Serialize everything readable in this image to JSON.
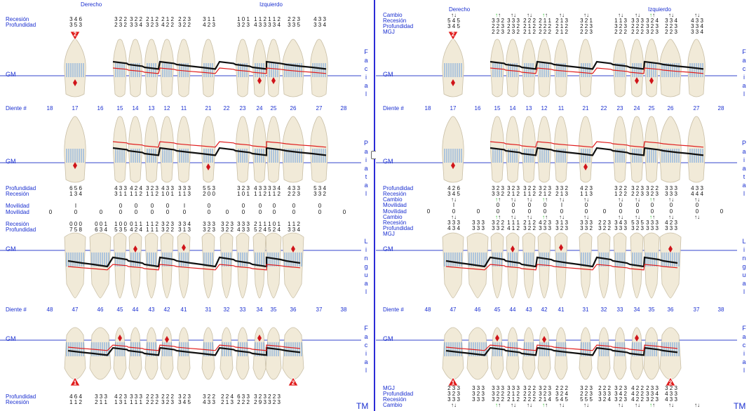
{
  "left": {
    "headers": {
      "right": "Derecho",
      "left": "Izquierdo"
    },
    "labels": {
      "recesion": "Recesión",
      "profundidad": "Profundidad",
      "movilidad": "Movilidad",
      "diente": "Diente #",
      "gm": "GM",
      "facial": "Facial",
      "palatal": "Paiatal",
      "lingual": "Lingual"
    },
    "upper_teeth": [
      "18",
      "17",
      "16",
      "15",
      "14",
      "13",
      "12",
      "11",
      "21",
      "22",
      "23",
      "24",
      "25",
      "26",
      "27",
      "28"
    ],
    "lower_teeth": [
      "48",
      "47",
      "46",
      "45",
      "44",
      "43",
      "42",
      "41",
      "31",
      "32",
      "33",
      "34",
      "35",
      "36",
      "37",
      "38"
    ],
    "upper_facial_recesion": [
      "",
      "3 4 6",
      "",
      "3 2 2",
      "3 2 2",
      "2 1 2",
      "2 1 2",
      "2 2 3",
      "3 1 1",
      "",
      "1 0 1",
      "1 1 2",
      "1 1 2",
      "2 2 3",
      "4 3 3",
      ""
    ],
    "upper_facial_profundidad": [
      "",
      "3 5 3",
      "",
      "2 3 2",
      "3 3 4",
      "3 2 3",
      "4 2 2",
      "3 2 2",
      "4 2 3",
      "",
      "3 2 3",
      "4 3 3",
      "3 3 4",
      "3 3 5",
      "3 3 4",
      ""
    ],
    "upper_palatal_profundidad": [
      "",
      "6 5 6",
      "",
      "4 3 3",
      "4 2 4",
      "3 2 3",
      "4 3 3",
      "3 3 3",
      "5 5 3",
      "",
      "3 2 3",
      "4 3 3",
      "3 3 4",
      "4 3 3",
      "5 3 4",
      ""
    ],
    "upper_palatal_recesion": [
      "",
      "1 3 4",
      "",
      "3 1 1",
      "1 1 2",
      "1 1 2",
      "1 0 1",
      "1 1 3",
      "2 0 0",
      "",
      "1 0 1",
      "1 1 2",
      "1 1 2",
      "2 2 3",
      "3 3 2",
      ""
    ],
    "upper_movilidad": [
      "",
      "I",
      "",
      "0",
      "0",
      "0",
      "0",
      "I",
      "0",
      "",
      "0",
      "0",
      "0",
      "0",
      "0",
      ""
    ],
    "lower_movilidad": [
      "0",
      "0",
      "0",
      "0",
      "0",
      "0",
      "0",
      "0",
      "0",
      "0",
      "0",
      "0",
      "0",
      "0",
      "0",
      "0"
    ],
    "lower_lingual_recesion": [
      "",
      "0 0 0",
      "0 0 1",
      "1 0 0",
      "0 1 1",
      "1 1 2",
      "3 2 3",
      "3 3 4",
      "3 3 3",
      "3 2 3",
      "3 3 3",
      "2 1 1",
      "1 0 1",
      "1 1 2",
      "",
      ""
    ],
    "lower_lingual_profundidad": [
      "",
      "7 5 8",
      "6 3 4",
      "5 3 5",
      "4 2 4",
      "1 1 1",
      "3 2 2",
      "3 1 3",
      "3 2 3",
      "3 2 2",
      "4 3 3",
      "5 2 4",
      "5 2 4",
      "3 3 4",
      "",
      ""
    ],
    "lower_facial_profundidad": [
      "",
      "4 6 4",
      "3 3 3",
      "4 2 3",
      "3 3 3",
      "2 2 3",
      "2 2 2",
      "3 2 3",
      "3 2 2",
      "2 2 4",
      "6 3 3",
      "3 2 3",
      "2 2 3",
      "",
      "",
      ""
    ],
    "lower_facial_recesion": [
      "",
      "1 1 2",
      "2 1 1",
      "1 3 1",
      "1 1 1",
      "2 2 2",
      "3 2 3",
      "3 4 5",
      "4 3 3",
      "2 1 3",
      "2 2 2",
      "2 9 3",
      "3 2 3",
      "",
      "",
      ""
    ],
    "badge_17": "2",
    "badge_47": "1",
    "badge_36": "2",
    "tm": "TM"
  },
  "right": {
    "headers": {
      "right": "Derecho",
      "left": "Izquierdo"
    },
    "labels": {
      "cambio": "Cambio",
      "recesion": "Recesión",
      "profundidad": "Profundidad",
      "mgj": "MGJ",
      "movilidad": "Movilidad",
      "diente": "Diente #",
      "gm": "GM",
      "facial": "Facial",
      "palatal": "Paiatal",
      "lingual": "Lingual"
    },
    "upper_teeth": [
      "18",
      "17",
      "16",
      "15",
      "14",
      "13",
      "12",
      "11",
      "21",
      "22",
      "23",
      "24",
      "25",
      "26",
      "27",
      "28"
    ],
    "lower_teeth": [
      "48",
      "47",
      "46",
      "45",
      "44",
      "43",
      "42",
      "41",
      "31",
      "32",
      "33",
      "34",
      "35",
      "36",
      "37",
      "38"
    ],
    "upper_facial_recesion": [
      "",
      "5 4 5",
      "",
      "3 3 2",
      "3 3 3",
      "2 2 2",
      "2 1 1",
      "2 1 3",
      "3 2 1",
      "",
      "1 1 3",
      "3 3 3",
      "3 2 4",
      "3 3 4",
      "4 3 3",
      ""
    ],
    "upper_facial_profundidad": [
      "",
      "3 4 5",
      "",
      "2 2 3",
      "2 3 2",
      "2 1 2",
      "2 2 2",
      "2 1 2",
      "2 2 3",
      "",
      "3 2 3",
      "2 2 2",
      "3 2 3",
      "2 2 3",
      "3 3 4",
      ""
    ],
    "upper_facial_mgj": [
      "",
      "",
      "",
      "2 2 3",
      "2 3 2",
      "2 1 2",
      "2 2 2",
      "2 1 2",
      "2 2 3",
      "",
      "2 2 2",
      "2 2 2",
      "3 2 3",
      "2 2 3",
      "3 3 4",
      ""
    ],
    "upper_palatal_profundidad": [
      "",
      "4 2 6",
      "",
      "3 2 3",
      "3 2 3",
      "3 2 2",
      "3 2 3",
      "3 3 2",
      "4 2 3",
      "",
      "3 2 2",
      "3 2 3",
      "3 2 2",
      "3 3 3",
      "4 3 3",
      ""
    ],
    "upper_palatal_recesion": [
      "",
      "3 4 5",
      "",
      "3 3 2",
      "2 1 2",
      "1 1 2",
      "2 1 2",
      "2 1 3",
      "1 1 3",
      "",
      "1 2 2",
      "2 2 3",
      "3 2 3",
      "3 3 3",
      "4 4 4",
      ""
    ],
    "upper_movilidad": [
      "",
      "I",
      "",
      "0",
      "0",
      "0",
      "0",
      "I",
      "0",
      "",
      "0",
      "0",
      "0",
      "0",
      "0",
      ""
    ],
    "lower_movilidad": [
      "0",
      "0",
      "0",
      "0",
      "0",
      "0",
      "0",
      "0",
      "0",
      "0",
      "0",
      "0",
      "0",
      "0",
      "0",
      "0"
    ],
    "lower_lingual_recesion": [
      "",
      "3 3 3",
      "3 3 3",
      "3 2 2",
      "1 1 1",
      "2 1 2",
      "4 2 3",
      "3 1 3",
      "3 3 3",
      "2 2 3",
      "3 4 3",
      "5 3 5",
      "3 3 3",
      "4 2 3",
      "",
      ""
    ],
    "lower_lingual_profundidad": [
      "",
      "4 3 4",
      "3 3 3",
      "3 3 2",
      "4 1 2",
      "3 2 2",
      "3 3 3",
      "3 2 3",
      "3 3 2",
      "3 2 2",
      "3 3 3",
      "3 2 3",
      "3 3 3",
      "3 3 3",
      "",
      ""
    ],
    "lower_facial_mgj": [
      "",
      "2 3 3",
      "3 3 3",
      "3 3 3",
      "3 3 3",
      "3 2 2",
      "3 2 3",
      "2 2 2",
      "3 2 3",
      "2 2 2",
      "3 2 3",
      "4 2 2",
      "2 3 3",
      "3 2 3",
      "",
      ""
    ],
    "lower_facial_profundidad": [
      "",
      "3 2 3",
      "3 2 3",
      "3 2 2",
      "2 1 2",
      "2 2 2",
      "3 2 3",
      "3 2 4",
      "2 2 3",
      "3 3 3",
      "3 4 2",
      "4 2 2",
      "3 3 4",
      "4 3 3",
      "",
      ""
    ],
    "lower_facial_recesion": [
      "",
      "3 3 3",
      "3 3 3",
      "3 2 2",
      "2 1 2",
      "2 2 2",
      "2 1 4",
      "5 4 5",
      "5 5 5",
      "3 2 4",
      "3 2 3",
      "4 2 2",
      "3 2 3",
      "4 3 3",
      "",
      ""
    ],
    "badge_17": "2",
    "badge_47": "1",
    "badge_36": "2",
    "tm": "TM"
  },
  "colors": {
    "blue": "#1a2fd0",
    "red": "#e01b1b",
    "green": "#2dbe2d",
    "bar_blue": "#6aa0e0"
  }
}
